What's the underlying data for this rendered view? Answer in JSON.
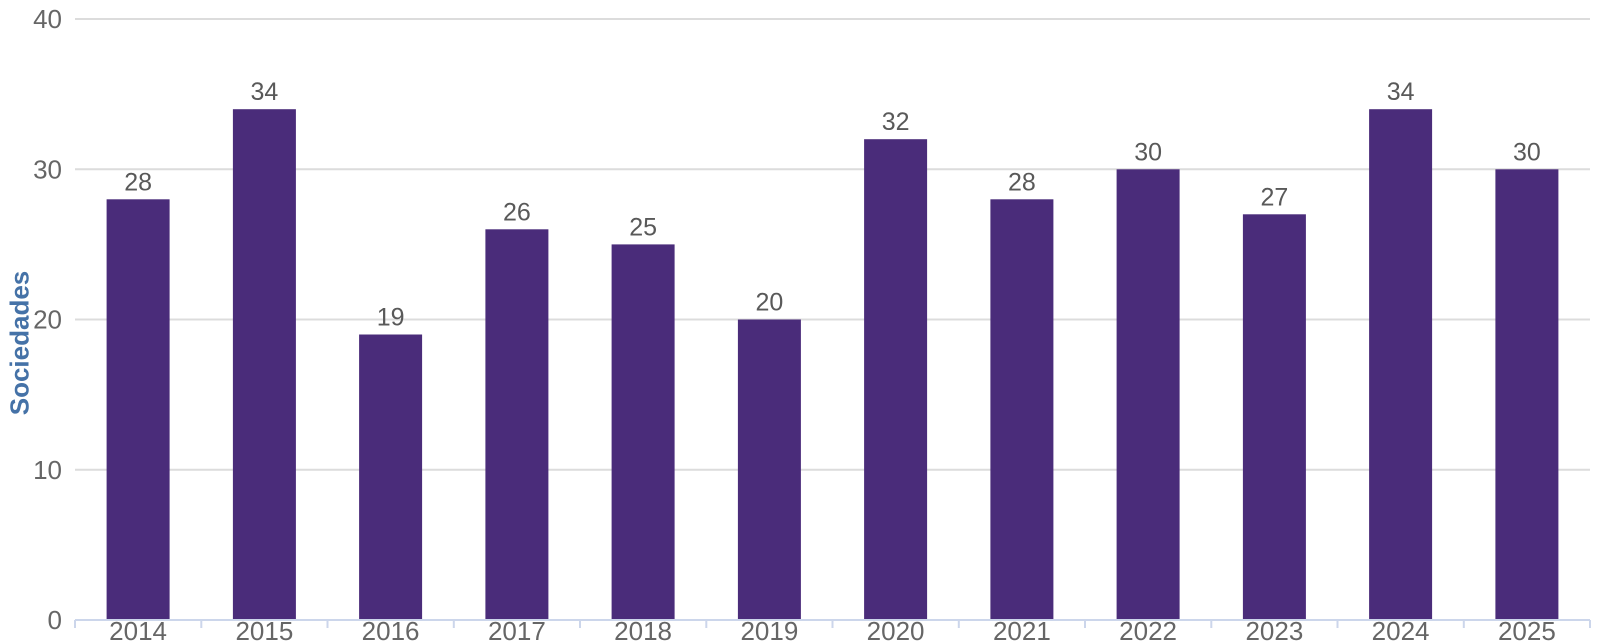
{
  "chart_data": {
    "type": "bar",
    "title": "",
    "xlabel": "",
    "ylabel": "Sociedades",
    "categories": [
      "2014",
      "2015",
      "2016",
      "2017",
      "2018",
      "2019",
      "2020",
      "2021",
      "2022",
      "2023",
      "2024",
      "2025"
    ],
    "values": [
      28,
      34,
      19,
      26,
      25,
      20,
      32,
      28,
      30,
      27,
      34,
      30
    ],
    "data_labels_shown": true,
    "ylim": [
      0,
      40
    ],
    "yticks": [
      0,
      10,
      20,
      30,
      40
    ],
    "grid": true,
    "legend": "none",
    "colors": {
      "bar": "#4a2c7a",
      "gridline": "#dcdcdc",
      "axis_line": "#ccd6eb",
      "tick_label": "#666666",
      "data_label": "#595959",
      "ylabel_title": "#4572a7",
      "background": "#ffffff"
    }
  }
}
